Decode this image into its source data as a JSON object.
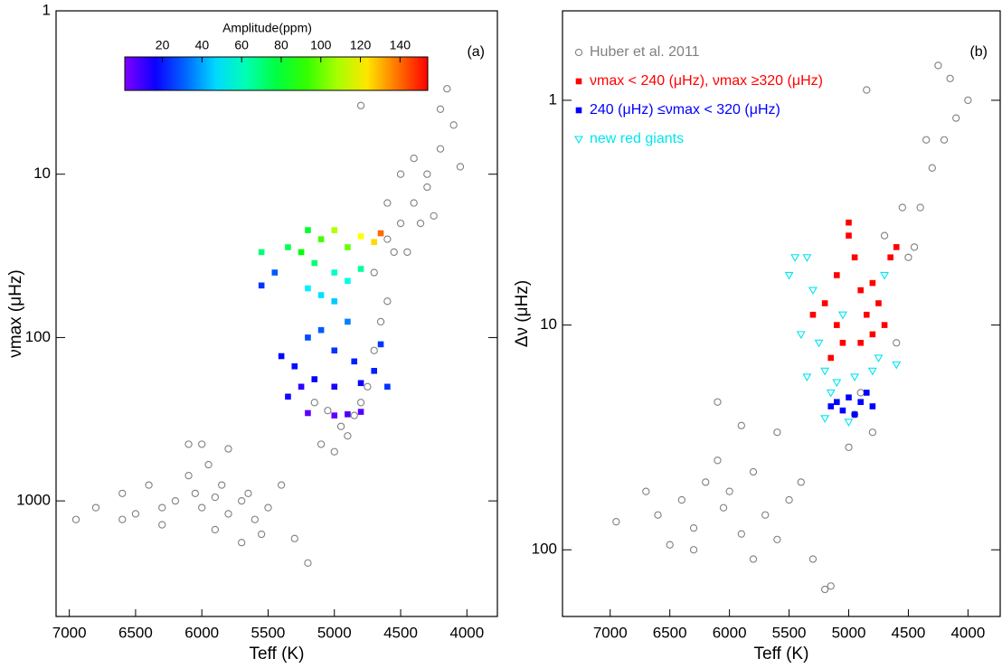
{
  "chart_data": [
    {
      "type": "scatter",
      "panel_label": "(a)",
      "x_label": "Teff (K)",
      "y_label": "νmax (μHz)",
      "xlim": [
        7100,
        3770
      ],
      "xticks": [
        7000,
        6500,
        6000,
        5500,
        5000,
        4500,
        4000
      ],
      "ylim": [
        1,
        5100
      ],
      "yticks": [
        1,
        10,
        100,
        1000
      ],
      "log_y": true,
      "colorbar": {
        "label": "Amplitude(ppm)",
        "lim": [
          1,
          154
        ],
        "ticks": [
          20,
          40,
          60,
          80,
          100,
          120,
          140
        ],
        "colormap": "rainbow"
      },
      "series": [
        {
          "color": "#808080",
          "marker": "circle",
          "x": [
            6950,
            6800,
            6600,
            6500,
            6400,
            6300,
            6200,
            6100,
            6050,
            6000,
            5950,
            5900,
            5850,
            5800,
            5700,
            5650,
            5600,
            5550,
            5500,
            5400,
            5300,
            5200,
            6100,
            6000,
            5800,
            5700,
            6300,
            5900,
            6600,
            5100,
            5000,
            4950,
            4900,
            5050,
            5150,
            4850,
            4800,
            4750,
            4700,
            4650,
            4600,
            4700,
            4600,
            4500,
            4400,
            4300,
            4400,
            4200,
            4100,
            4150,
            4300,
            4450,
            4550,
            4500,
            4350,
            4250,
            4600,
            4800,
            4200,
            4050
          ],
          "values": [
            1300,
            1100,
            900,
            1200,
            800,
            1400,
            1000,
            700,
            900,
            1100,
            600,
            1500,
            800,
            1200,
            1000,
            900,
            1300,
            1600,
            1100,
            800,
            1700,
            2400,
            450,
            450,
            480,
            1800,
            1100,
            950,
            1300,
            450,
            500,
            350,
            400,
            280,
            250,
            300,
            250,
            200,
            120,
            80,
            60,
            40,
            25,
            20,
            15,
            10,
            8,
            7,
            5,
            3,
            12,
            30,
            30,
            10,
            20,
            18,
            15,
            3.8,
            4,
            9
          ]
        },
        {
          "marker": "square",
          "colored_by": "amplitude",
          "x": [
            5200,
            5100,
            5000,
            4900,
            4800,
            4700,
            4650,
            5250,
            5350,
            5550,
            5150,
            5000,
            4900,
            4800,
            5200,
            5100,
            5000,
            5450,
            5550,
            4900,
            5100,
            5200,
            5000,
            4850,
            5300,
            5150,
            5000,
            4800,
            5250,
            4700,
            4650,
            5200,
            5000,
            4900,
            4800,
            5400,
            5350,
            4600
          ],
          "values": [
            22,
            25,
            22,
            28,
            24,
            26,
            23,
            30,
            28,
            30,
            35,
            40,
            45,
            38,
            50,
            55,
            60,
            40,
            48,
            80,
            90,
            100,
            120,
            140,
            150,
            180,
            200,
            190,
            200,
            160,
            110,
            290,
            300,
            295,
            285,
            130,
            230,
            200
          ],
          "amplitude": [
            80,
            95,
            110,
            100,
            120,
            125,
            140,
            85,
            75,
            70,
            70,
            60,
            55,
            65,
            50,
            48,
            45,
            30,
            25,
            35,
            30,
            28,
            25,
            22,
            20,
            18,
            15,
            17,
            12,
            22,
            25,
            6,
            5,
            8,
            7,
            18,
            15,
            25
          ]
        }
      ]
    },
    {
      "type": "scatter",
      "panel_label": "(b)",
      "x_label": "Teff (K)",
      "y_label": "Δν (μHz)",
      "xlim": [
        7400,
        3730
      ],
      "xticks": [
        7000,
        6500,
        6000,
        5500,
        5000,
        4500,
        4000
      ],
      "ylim": [
        0.4,
        198
      ],
      "yticks": [
        1,
        10,
        100
      ],
      "log_y": true,
      "legend": "upper-left",
      "series": [
        {
          "name": "Huber et al. 2011",
          "color": "#808080",
          "marker": "circle",
          "x": [
            6950,
            6700,
            6600,
            6500,
            6400,
            6300,
            6200,
            6100,
            6050,
            6000,
            5900,
            5800,
            5700,
            5600,
            5500,
            5400,
            5300,
            5200,
            6100,
            5900,
            5600,
            5800,
            6300,
            5150,
            5000,
            4950,
            4800,
            4900,
            4600,
            4500,
            4400,
            4300,
            4200,
            4100,
            4150,
            4000,
            4350,
            4550,
            4700,
            4850,
            4250,
            4450
          ],
          "values": [
            75,
            55,
            70,
            95,
            60,
            80,
            50,
            40,
            65,
            55,
            85,
            45,
            70,
            90,
            60,
            50,
            110,
            150,
            22,
            28,
            30,
            110,
            100,
            145,
            35,
            25,
            30,
            20,
            12,
            5,
            3,
            2,
            1.5,
            1.2,
            0.8,
            1,
            1.5,
            3,
            4,
            0.9,
            0.7,
            4.5
          ]
        },
        {
          "name": "νmax < 240 (μHz), νmax ≥320 (μHz)",
          "color": "#ff0000",
          "marker": "square",
          "x": [
            5200,
            5100,
            5000,
            4950,
            4900,
            4800,
            4750,
            4700,
            5100,
            4900,
            4800,
            5300,
            4650,
            5000,
            5050,
            4850,
            5150,
            4600
          ],
          "values": [
            8,
            6,
            4,
            5,
            7,
            6.5,
            8,
            10,
            10,
            12,
            11,
            9,
            5,
            3.5,
            12,
            9,
            14,
            4.5
          ]
        },
        {
          "name": "240 (μHz) ≤νmax < 320 (μHz)",
          "color": "#0000ff",
          "marker": "square",
          "x": [
            5100,
            5000,
            4900,
            4800,
            5050,
            4850,
            5150,
            4950
          ],
          "values": [
            22,
            21,
            22,
            23,
            24,
            20,
            23,
            25
          ]
        },
        {
          "name": "new red giants",
          "color": "#00e5ee",
          "marker": "triangle",
          "x": [
            5350,
            5450,
            5500,
            5200,
            5100,
            4950,
            4800,
            4750,
            4700,
            5050,
            5250,
            5200,
            5000,
            5150,
            4600,
            5300,
            5400,
            5350
          ],
          "values": [
            5,
            5,
            6,
            16,
            18,
            17,
            16,
            14,
            6,
            9,
            12,
            26,
            27,
            20,
            15,
            7,
            11,
            17
          ]
        }
      ]
    }
  ]
}
